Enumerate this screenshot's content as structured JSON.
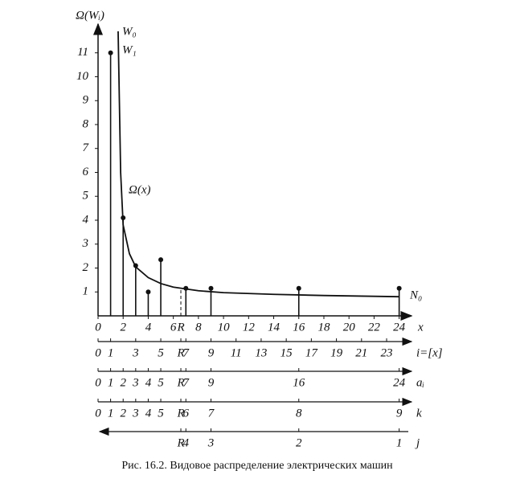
{
  "chart_data": {
    "type": "stem",
    "y_label": "Ω(Wᵢ)",
    "x_label": "x",
    "xlim": [
      0,
      24.6
    ],
    "ylim": [
      0,
      12.1
    ],
    "xticks": [
      0,
      2,
      4,
      6,
      8,
      10,
      12,
      14,
      16,
      18,
      20,
      22,
      24
    ],
    "yticks": [
      1,
      2,
      3,
      4,
      5,
      6,
      7,
      8,
      9,
      10,
      11
    ],
    "x": [
      1,
      2,
      3,
      4,
      5,
      7,
      9,
      16,
      24
    ],
    "values": [
      11,
      4.1,
      2.1,
      1,
      2.35,
      1.15,
      1.15,
      1.15,
      1.15
    ],
    "color": "#111111",
    "curve": {
      "name": "Ω(x)",
      "x": [
        1.6,
        1.8,
        2,
        2.5,
        3,
        4,
        5,
        6,
        8,
        10,
        14,
        18,
        24
      ],
      "values": [
        11.9,
        6,
        3.8,
        2.6,
        2.05,
        1.6,
        1.35,
        1.2,
        1.05,
        0.97,
        0.9,
        0.85,
        0.8
      ]
    },
    "r_marker": {
      "label": "R",
      "x": 6.6,
      "value": 1.1
    },
    "annotations": [
      "W₀",
      "W₁",
      "N₀"
    ],
    "scales": [
      {
        "name": "i=[x]",
        "direction": "right",
        "positions": [
          0,
          1,
          3,
          5,
          6.6,
          7,
          9,
          11,
          13,
          15,
          17,
          19,
          21,
          23
        ],
        "labels": [
          "0",
          "1",
          "3",
          "5",
          "R",
          "7",
          "9",
          "11",
          "13",
          "15",
          "17",
          "19",
          "21",
          "23"
        ]
      },
      {
        "name": "aᵢ",
        "direction": "right",
        "positions": [
          0,
          1,
          2,
          3,
          4,
          5,
          6.6,
          7,
          9,
          16,
          24
        ],
        "labels": [
          "0",
          "1",
          "2",
          "3",
          "4",
          "5",
          "R",
          "7",
          "9",
          "16",
          "24"
        ]
      },
      {
        "name": "k",
        "direction": "right",
        "positions": [
          0,
          1,
          2,
          3,
          4,
          5,
          6.6,
          7,
          9,
          16,
          24
        ],
        "labels": [
          "0",
          "1",
          "2",
          "3",
          "4",
          "5",
          "R",
          "6",
          "7",
          "8",
          "9"
        ]
      },
      {
        "name": "j",
        "direction": "left",
        "positions": [
          6.6,
          7,
          9,
          16,
          24
        ],
        "labels": [
          "R",
          "4",
          "3",
          "2",
          "1"
        ]
      }
    ],
    "caption": "Рис. 16.2. Видовое распределение электрических машин"
  }
}
